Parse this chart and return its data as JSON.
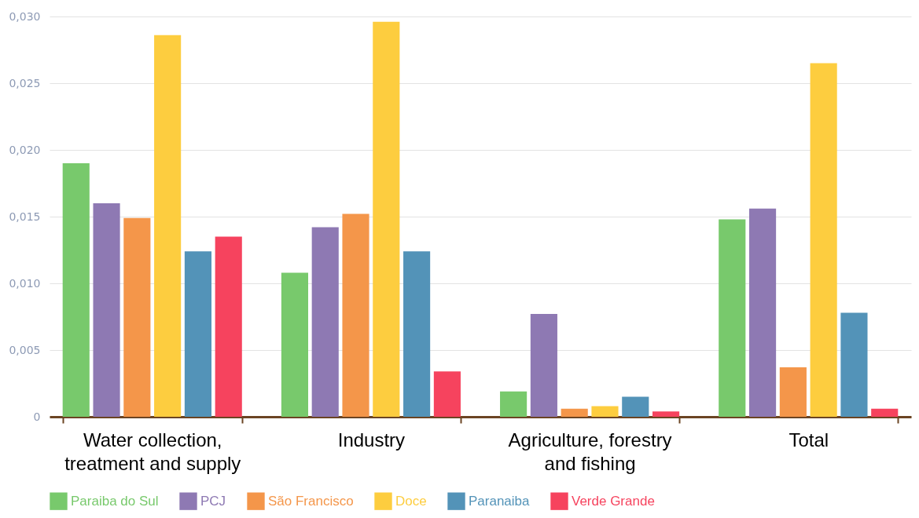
{
  "chart_data": {
    "type": "bar",
    "categories": [
      "Water collection, treatment and supply",
      "Industry",
      "Agriculture, forestry and fishing",
      "Total"
    ],
    "series": [
      {
        "name": "Paraiba do Sul",
        "color": "#78c96c",
        "values": [
          0.019,
          0.0108,
          0.0019,
          0.0148
        ]
      },
      {
        "name": "PCJ",
        "color": "#8e79b3",
        "values": [
          0.016,
          0.0142,
          0.0077,
          0.0156
        ]
      },
      {
        "name": "São Francisco",
        "color": "#f4964a",
        "values": [
          0.0149,
          0.0152,
          0.0006,
          0.0037
        ]
      },
      {
        "name": "Doce",
        "color": "#fdcd3f",
        "values": [
          0.0286,
          0.0296,
          0.0008,
          0.0265
        ]
      },
      {
        "name": "Paranaiba",
        "color": "#5393b8",
        "values": [
          0.0124,
          0.0124,
          0.0015,
          0.0078
        ]
      },
      {
        "name": "Verde Grande",
        "color": "#f6435e",
        "values": [
          0.0135,
          0.0034,
          0.0004,
          0.0006
        ]
      }
    ],
    "ylim": [
      0,
      0.03
    ],
    "yticks": [
      {
        "value": 0,
        "label": "0"
      },
      {
        "value": 0.005,
        "label": "0,005"
      },
      {
        "value": 0.01,
        "label": "0,010"
      },
      {
        "value": 0.015,
        "label": "0,015"
      },
      {
        "value": 0.02,
        "label": "0,020"
      },
      {
        "value": 0.025,
        "label": "0,025"
      },
      {
        "value": 0.03,
        "label": "0,030"
      }
    ],
    "grid": "y",
    "legend": "bottom"
  }
}
